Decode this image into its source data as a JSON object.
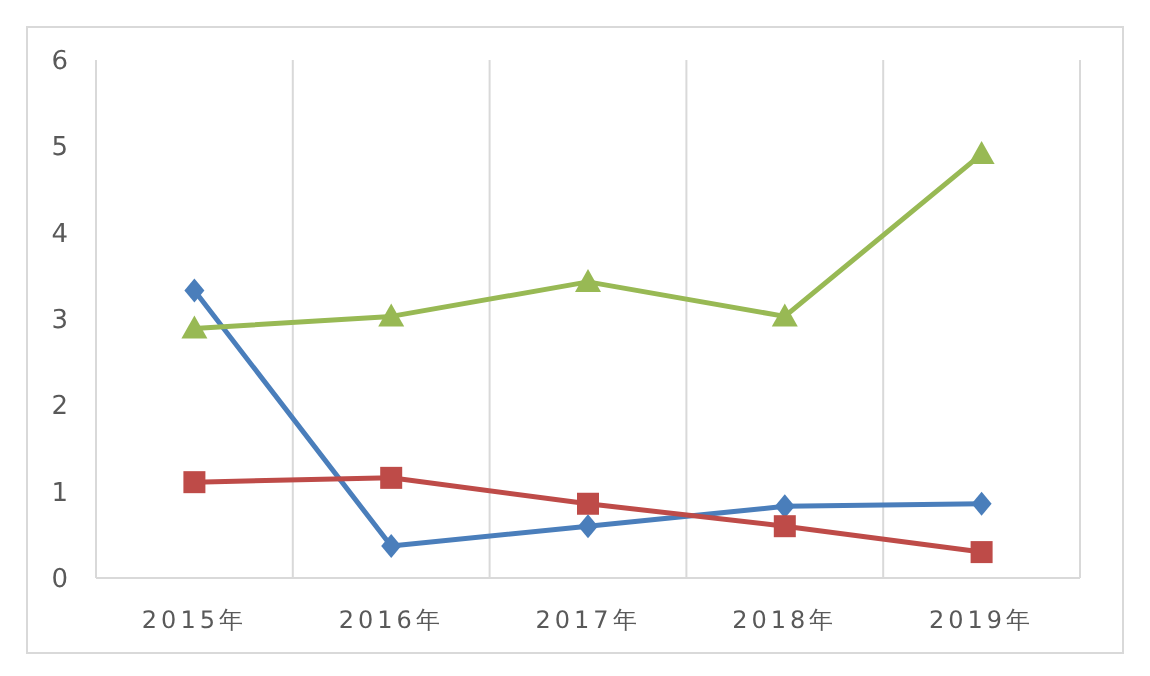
{
  "chart_data": {
    "type": "line",
    "categories": [
      "2015年",
      "2016年",
      "2017年",
      "2018年",
      "2019年"
    ],
    "series": [
      {
        "color": "#4a7ebb",
        "marker": "diamond",
        "values": [
          3.33,
          0.37,
          0.6,
          0.83,
          0.86
        ]
      },
      {
        "color": "#be4b48",
        "marker": "square",
        "values": [
          1.11,
          1.16,
          0.86,
          0.6,
          0.3
        ]
      },
      {
        "color": "#98b954",
        "marker": "triangle",
        "values": [
          2.89,
          3.03,
          3.43,
          3.03,
          4.91
        ]
      }
    ],
    "ylim": [
      0,
      6
    ],
    "yticks": [
      0,
      1,
      2,
      3,
      4,
      5,
      6
    ],
    "grid": "x"
  }
}
